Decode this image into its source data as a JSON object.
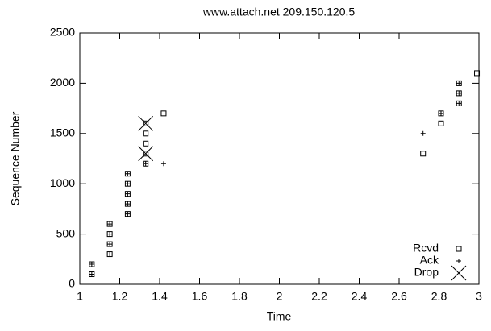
{
  "chart_data": {
    "type": "scatter",
    "title": "www.attach.net 209.150.120.5",
    "x_label": "Time",
    "y_label": "Sequence Number",
    "xlim": [
      1,
      3
    ],
    "xticks": [
      1,
      1.2,
      1.4,
      1.6,
      1.8,
      2,
      2.2,
      2.4,
      2.6,
      2.8,
      3
    ],
    "ylim": [
      0,
      2500
    ],
    "yticks": [
      0,
      500,
      1000,
      1500,
      2000,
      2500
    ],
    "grid": false,
    "legend": "bottom right",
    "series": [
      {
        "name": "Rcvd",
        "marker": "square",
        "color": "#000000",
        "x": [
          1.06,
          1.06,
          1.15,
          1.15,
          1.15,
          1.15,
          1.24,
          1.24,
          1.24,
          1.24,
          1.24,
          1.33,
          1.33,
          1.33,
          1.33,
          1.33,
          1.42,
          2.72,
          2.81,
          2.81,
          2.9,
          2.9,
          2.9,
          2.99
        ],
        "values": [
          100,
          200,
          300,
          400,
          500,
          600,
          700,
          800,
          900,
          1000,
          1100,
          1200,
          1300,
          1400,
          1500,
          1600,
          1700,
          1300,
          1600,
          1700,
          1800,
          1900,
          2000,
          2100
        ]
      },
      {
        "name": "Ack",
        "marker": "plus",
        "color": "#000000",
        "x": [
          1.06,
          1.06,
          1.15,
          1.15,
          1.15,
          1.15,
          1.24,
          1.24,
          1.24,
          1.24,
          1.24,
          1.33,
          1.42,
          2.72,
          2.81,
          2.9,
          2.9,
          2.9
        ],
        "values": [
          100,
          200,
          300,
          400,
          500,
          600,
          700,
          800,
          900,
          1000,
          1100,
          1200,
          1200,
          1500,
          1700,
          1800,
          1900,
          2000
        ]
      },
      {
        "name": "Drop",
        "marker": "cross",
        "color": "#000000",
        "x": [
          1.33,
          1.33
        ],
        "values": [
          1300,
          1600
        ]
      }
    ]
  }
}
